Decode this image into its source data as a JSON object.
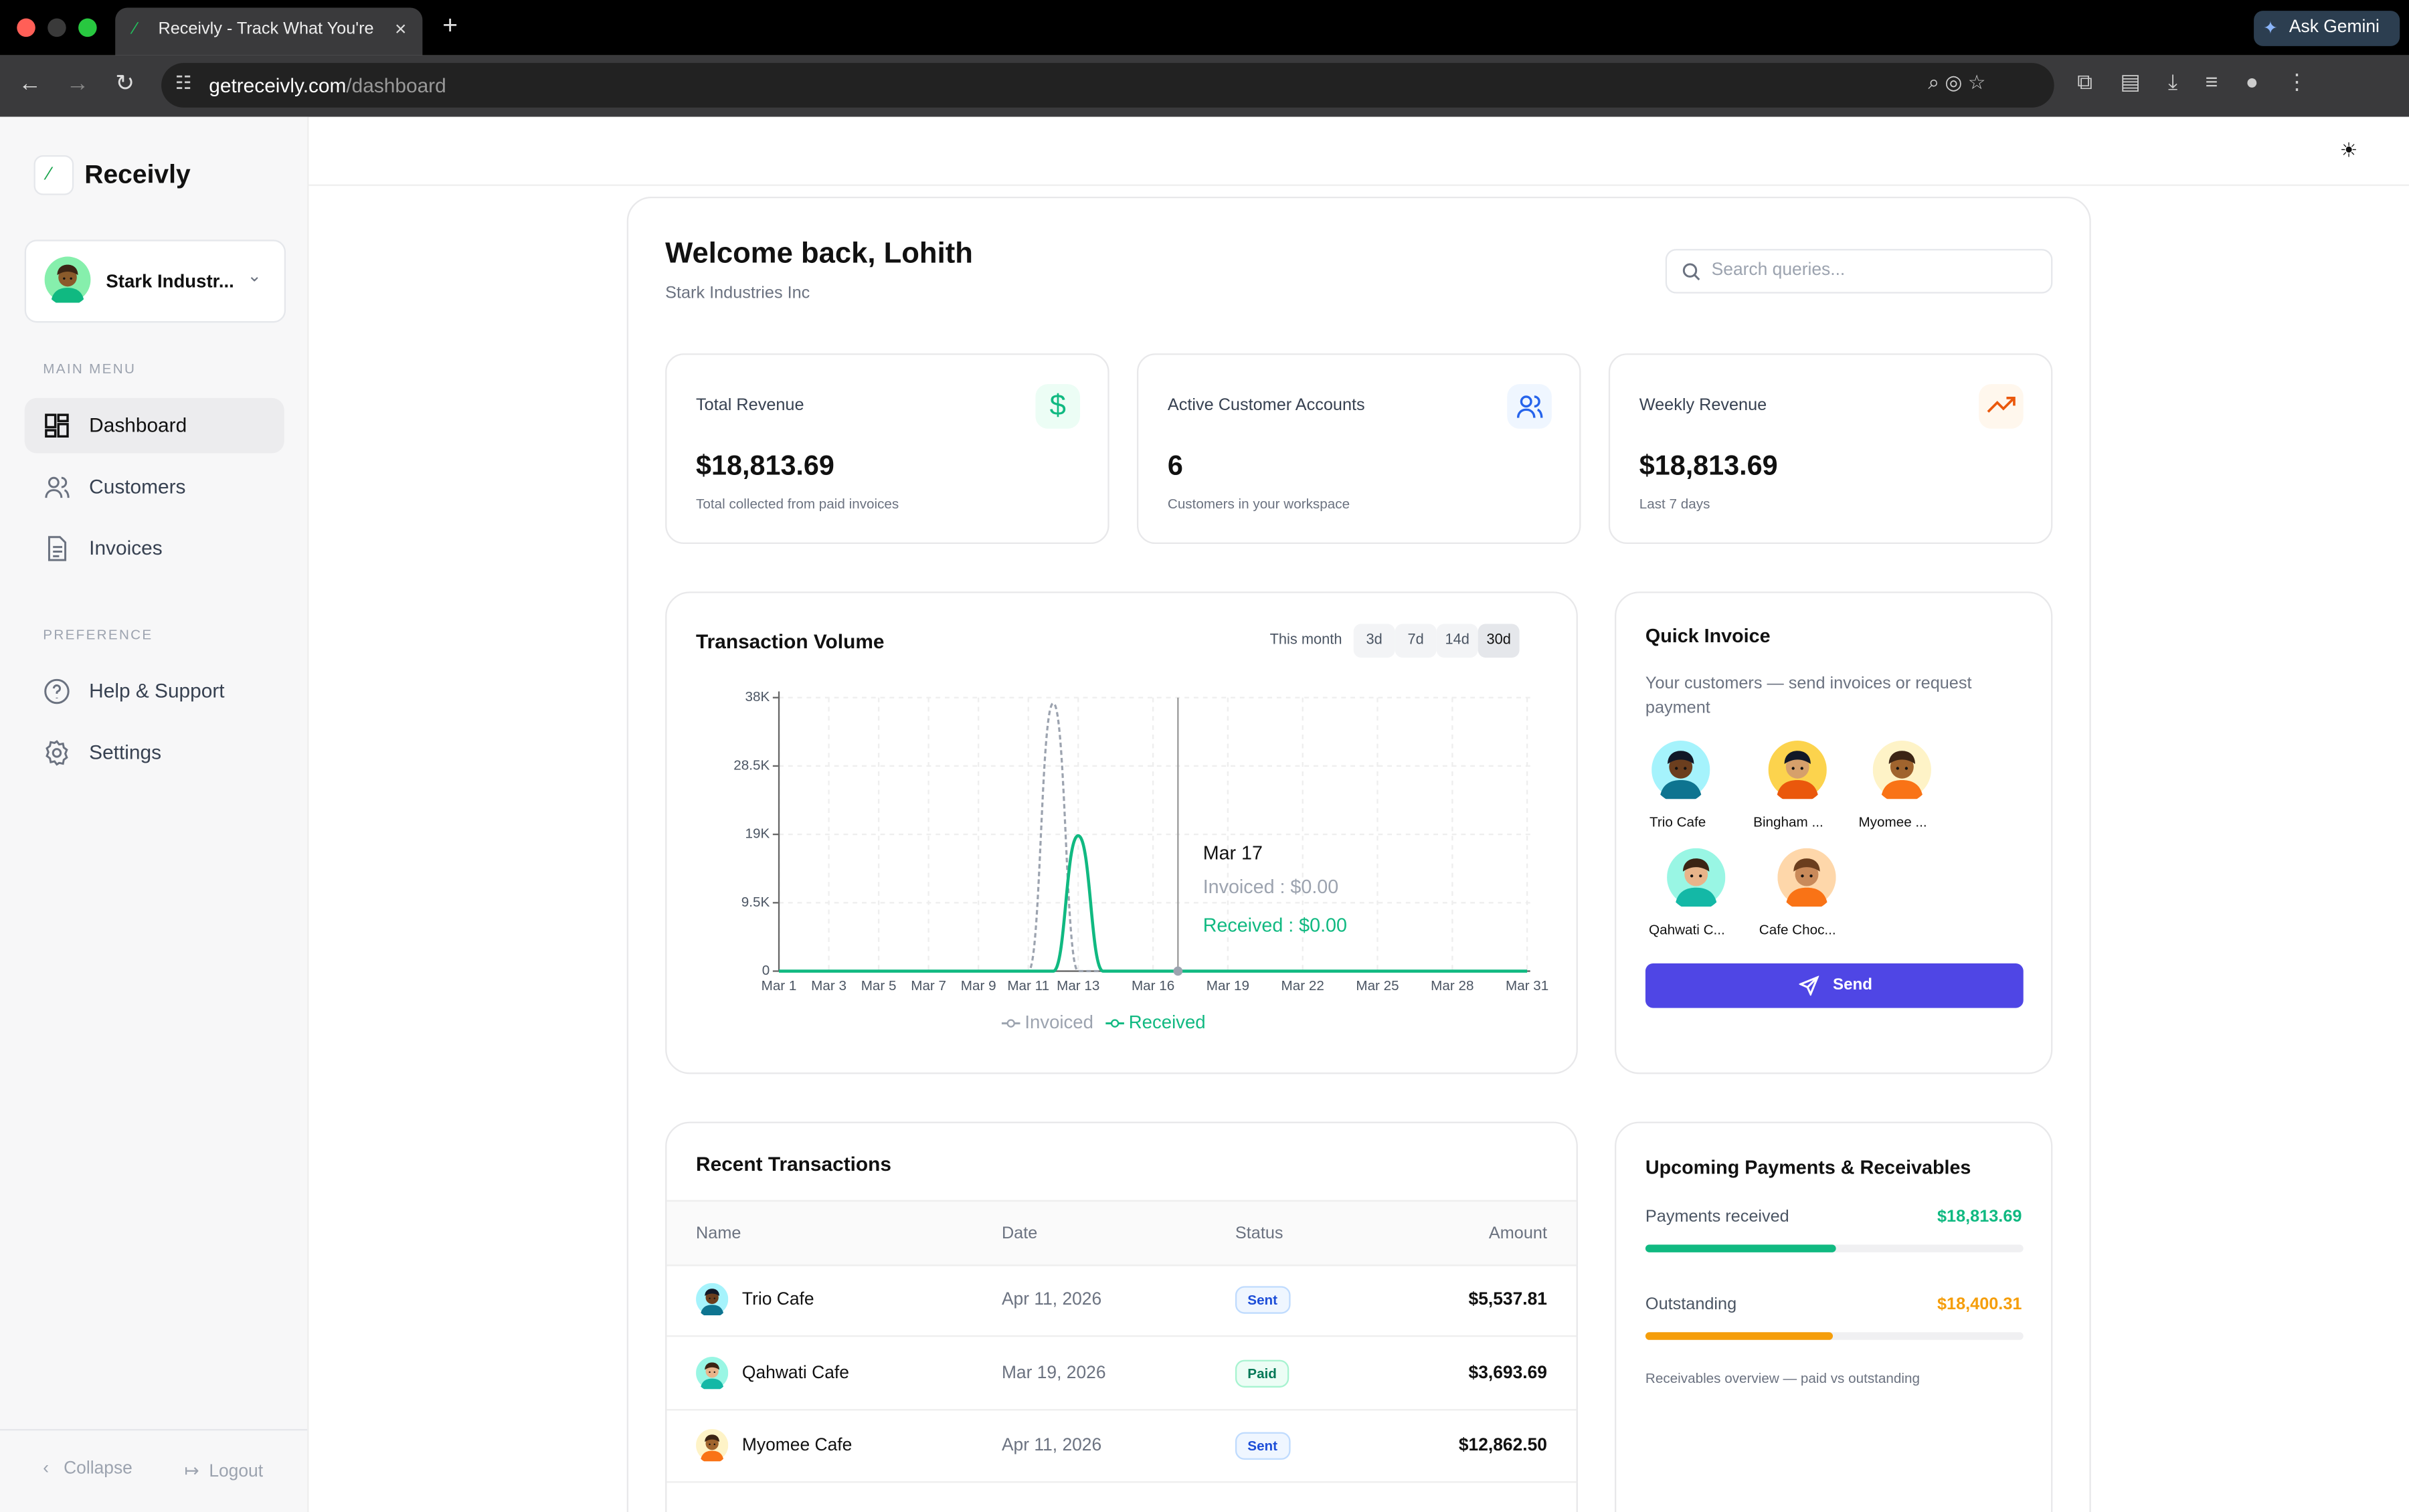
{
  "browser": {
    "tab_title": "Receivly - Track What You're",
    "url_domain": "getreceivly.com",
    "url_path": "/dashboard",
    "ask_gemini": "Ask Gemini"
  },
  "sidebar": {
    "brand": "Receivly",
    "workspace": "Stark Industr...",
    "main_menu_label": "MAIN MENU",
    "main_menu": [
      "Dashboard",
      "Customers",
      "Invoices"
    ],
    "preference_label": "PREFERENCE",
    "preference_menu": [
      "Help & Support",
      "Settings"
    ],
    "collapse": "Collapse",
    "logout": "Logout"
  },
  "header": {
    "title": "Welcome back, Lohith",
    "subtitle": "Stark Industries Inc",
    "search_placeholder": "Search queries..."
  },
  "stats": [
    {
      "label": "Total Revenue",
      "value": "$18,813.69",
      "note": "Total collected from paid invoices"
    },
    {
      "label": "Active Customer Accounts",
      "value": "6",
      "note": "Customers in your workspace"
    },
    {
      "label": "Weekly Revenue",
      "value": "$18,813.69",
      "note": "Last 7 days"
    }
  ],
  "chart": {
    "type": "line",
    "title": "Transaction Volume",
    "ranges": [
      "This month",
      "3d",
      "7d",
      "14d",
      "30d"
    ],
    "categories": [
      "Mar 1",
      null,
      "Mar 3",
      null,
      "Mar 5",
      null,
      "Mar 7",
      null,
      "Mar 9",
      null,
      "Mar 11",
      null,
      "Mar 13",
      null,
      null,
      "Mar 16",
      null,
      null,
      "Mar 19",
      null,
      null,
      "Mar 22",
      null,
      null,
      "Mar 25",
      null,
      null,
      "Mar 28",
      null,
      null,
      "Mar 31"
    ],
    "series": [
      {
        "name": "Invoiced",
        "color": "#9ca3af",
        "dashed": true,
        "values": [
          0,
          0,
          0,
          0,
          0,
          0,
          0,
          0,
          0,
          0,
          0,
          37214,
          0,
          0,
          0,
          0,
          0,
          0,
          0,
          0,
          0,
          0,
          0,
          0,
          0,
          0,
          0,
          0,
          0,
          0,
          0
        ]
      },
      {
        "name": "Received",
        "color": "#10b981",
        "dashed": false,
        "values": [
          0,
          0,
          0,
          0,
          0,
          0,
          0,
          0,
          0,
          0,
          0,
          0,
          18814,
          0,
          0,
          0,
          0,
          0,
          0,
          0,
          0,
          0,
          0,
          0,
          0,
          0,
          0,
          0,
          0,
          0,
          0
        ]
      }
    ],
    "ylim": [
      0,
      38000
    ],
    "yticks": [
      0,
      {
        "value": 9500,
        "label": "9.5K"
      },
      {
        "value": 19000,
        "label": "19K"
      },
      {
        "value": 28500,
        "label": "28.5K"
      },
      {
        "value": 38000,
        "label": "38K"
      }
    ],
    "grid": true,
    "tooltip": {
      "title": "Mar 17",
      "lines": [
        "Invoiced : $0.00",
        "Received : $0.00"
      ]
    }
  },
  "quick_invoice": {
    "title": "Quick Invoice",
    "description": "Your customers — send invoices or request payment",
    "customers": [
      "Trio Cafe",
      "Bingham ...",
      "Myomee ...",
      "Qahwati C...",
      "Cafe Choc..."
    ],
    "button": "Send"
  },
  "transactions": {
    "title": "Recent Transactions",
    "columns": [
      "Name",
      "Date",
      "Status",
      "Amount"
    ],
    "rows": [
      [
        "Trio Cafe",
        "Apr 11, 2026",
        "Sent",
        "$5,537.81"
      ],
      [
        "Qahwati Cafe",
        "Mar 19, 2026",
        "Paid",
        "$3,693.69"
      ],
      [
        "Myomee Cafe",
        "Apr 11, 2026",
        "Sent",
        "$12,862.50"
      ]
    ]
  },
  "upcoming": {
    "title": "Upcoming Payments & Receivables",
    "labels": [
      "Payments received",
      "Outstanding"
    ],
    "values": [
      18813.69,
      18400.31
    ],
    "value_labels": [
      "$18,813.69",
      "$18,400.31"
    ],
    "colors": [
      "#10b981",
      "#f59e0b"
    ],
    "footnote": "Receivables overview — paid vs outstanding"
  }
}
